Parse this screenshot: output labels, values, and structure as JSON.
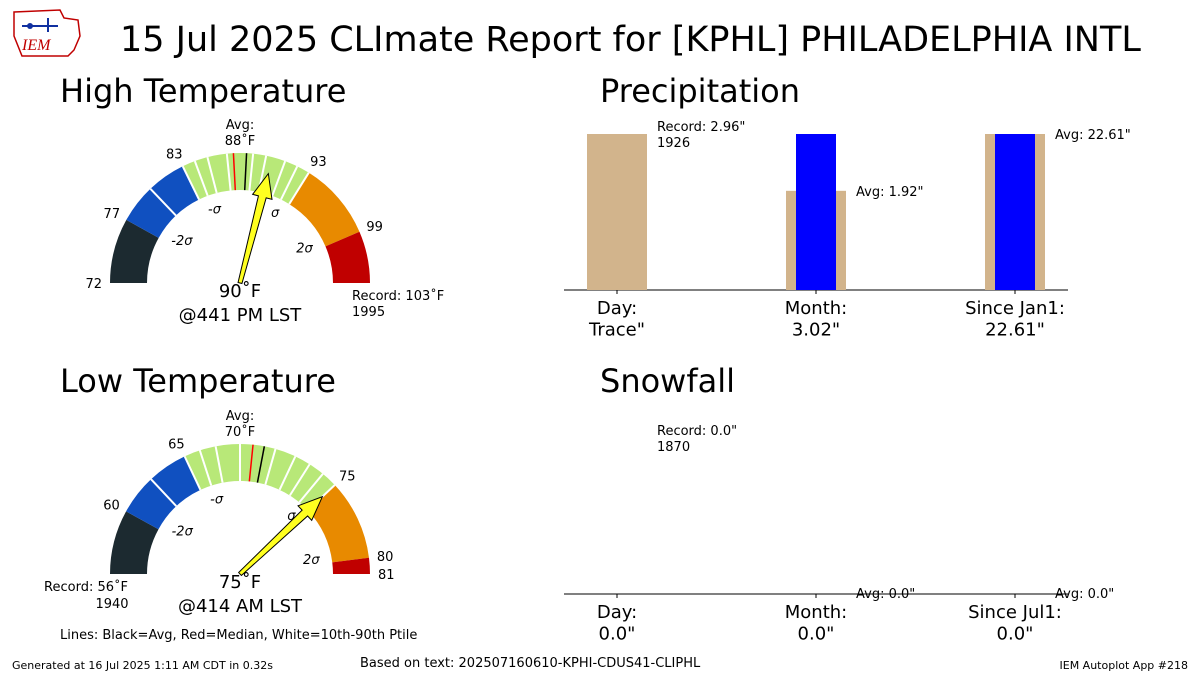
{
  "page": {
    "title": "15 Jul 2025 CLImate Report for [KPHL] PHILADELPHIA INTL",
    "logo_text": "IEM",
    "footer_left": "Generated at 16 Jul 2025 1:11 AM CDT in 0.32s",
    "footer_center": "Based on text: 202507160610-KPHI-CDUS41-CLIPHL",
    "footer_right": "IEM Autoplot App #218",
    "legend_note": "Lines: Black=Avg, Red=Median, White=10th-90th Ptile"
  },
  "colors": {
    "dark": "#1c2a30",
    "blue": "#1050c0",
    "green": "#b8e878",
    "orange": "#e88a00",
    "red": "#c00000",
    "needle": "#ffff20",
    "tan": "#d2b48c",
    "bar_blue": "#0000ff"
  },
  "chart_data": [
    {
      "type": "gauge",
      "title": "High Temperature",
      "range": [
        72,
        103
      ],
      "bands": [
        {
          "from": 72,
          "to": 77,
          "color": "dark"
        },
        {
          "from": 77,
          "to": 83,
          "color": "blue"
        },
        {
          "from": 83,
          "to": 93,
          "color": "green"
        },
        {
          "from": 93,
          "to": 99,
          "color": "orange"
        },
        {
          "from": 99,
          "to": 103,
          "color": "red"
        }
      ],
      "tick_labels": [
        72,
        77,
        83,
        93,
        99
      ],
      "sigma_labels": [
        "-2σ",
        "-σ",
        "σ",
        "2σ"
      ],
      "white_lines": [
        80,
        83,
        84,
        85,
        86.5,
        88.5,
        89.5,
        91,
        92,
        93
      ],
      "avg": 88,
      "median": 87,
      "avg_label": "Avg:",
      "avg_value": "88˚F",
      "observed": 90,
      "observed_label": "90˚F",
      "time_label": "@441 PM LST",
      "record_label": "Record: 103˚F",
      "record_year": "1995"
    },
    {
      "type": "gauge",
      "title": "Low Temperature",
      "range": [
        56,
        81
      ],
      "bands": [
        {
          "from": 56,
          "to": 60,
          "color": "dark"
        },
        {
          "from": 60,
          "to": 65,
          "color": "blue"
        },
        {
          "from": 65,
          "to": 75,
          "color": "green"
        },
        {
          "from": 75,
          "to": 80,
          "color": "orange"
        },
        {
          "from": 80,
          "to": 81,
          "color": "red"
        }
      ],
      "tick_labels": [
        60,
        65,
        75,
        80,
        81
      ],
      "sigma_labels": [
        "-2σ",
        "-σ",
        "σ",
        "2σ"
      ],
      "white_lines": [
        62.5,
        65,
        66,
        67,
        68.5,
        70.7,
        72,
        73,
        74,
        75
      ],
      "avg": 70,
      "median": 69.3,
      "avg_label": "Avg:",
      "avg_value": "70˚F",
      "observed": 75,
      "observed_label": "75˚F",
      "time_label": "@414 AM LST",
      "record_label": "Record: 56˚F",
      "record_year": "1940"
    },
    {
      "type": "bar",
      "title": "Precipitation",
      "categories": [
        "Day:\nTrace\"",
        "Month:\n3.02\"",
        "Since Jan1:\n22.61\""
      ],
      "unit": "in",
      "record": {
        "value": 2.96,
        "label": "Record: 2.96\"",
        "year": "1926"
      },
      "avg": [
        {
          "value": 1.92,
          "label": "Avg: 1.92\""
        },
        {
          "value": 22.61,
          "label": "Avg: 22.61\""
        }
      ],
      "observed": [
        0.0001,
        3.02,
        22.61
      ]
    },
    {
      "type": "bar",
      "title": "Snowfall",
      "categories": [
        "Day:\n0.0\"",
        "Month:\n0.0\"",
        "Since Jul1:\n0.0\""
      ],
      "unit": "in",
      "record": {
        "value": 0.0,
        "label": "Record: 0.0\"",
        "year": "1870"
      },
      "avg": [
        {
          "value": 0.0,
          "label": "Avg: 0.0\""
        },
        {
          "value": 0.0,
          "label": "Avg: 0.0\""
        }
      ],
      "observed": [
        0.0,
        0.0,
        0.0
      ]
    }
  ]
}
